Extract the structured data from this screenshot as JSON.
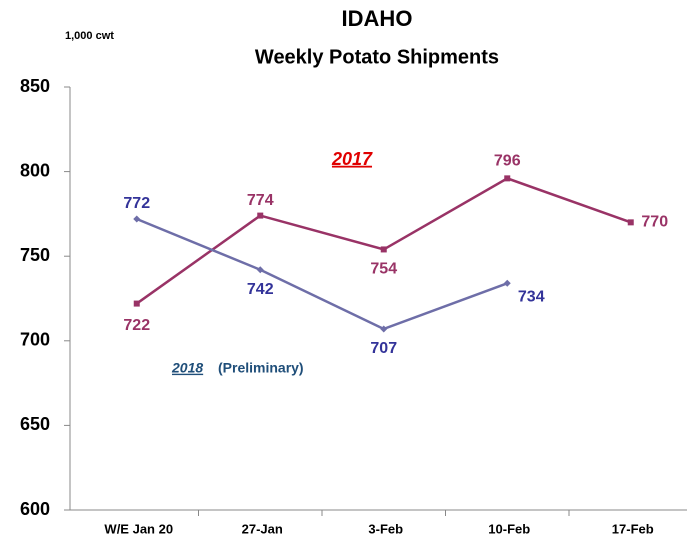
{
  "chart_data": {
    "type": "line",
    "title": "IDAHO",
    "subtitle": "Weekly Potato Shipments",
    "unit_label": "1,000 cwt",
    "annotation": "(Preliminary)",
    "categories": [
      "W/E Jan 20",
      "27-Jan",
      "3-Feb",
      "10-Feb",
      "17-Feb"
    ],
    "series": [
      {
        "name": "2017",
        "color": "#993366",
        "label_color": "#993366",
        "name_color": "#e00000",
        "values": [
          722,
          774,
          754,
          796,
          770
        ]
      },
      {
        "name": "2018",
        "color": "#6e6ea8",
        "label_color": "#333399",
        "name_color": "#1f4e79",
        "values": [
          772,
          742,
          707,
          734,
          null
        ]
      }
    ],
    "ylim": [
      600,
      850
    ],
    "yticks": [
      600,
      650,
      700,
      750,
      800,
      850
    ],
    "grid": false
  }
}
